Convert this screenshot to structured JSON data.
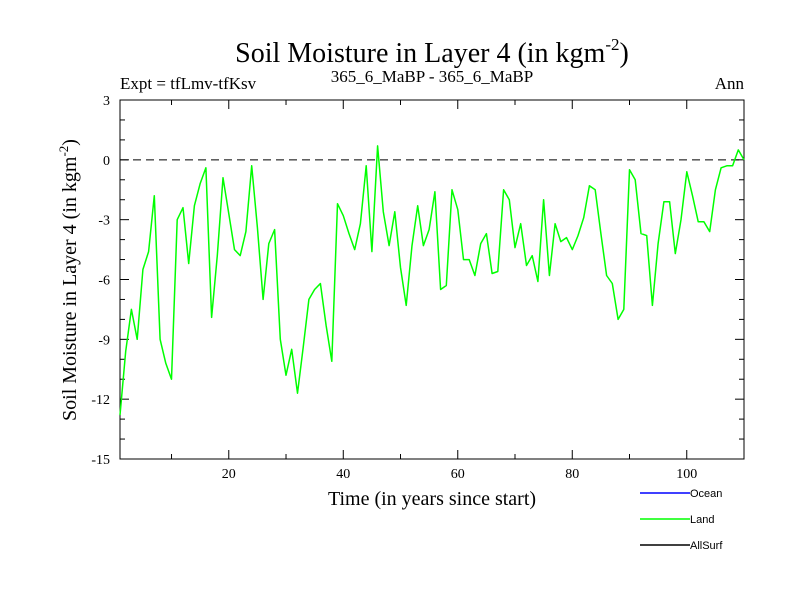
{
  "chart_data": {
    "type": "line",
    "title": "Soil Moisture in Layer 4 (in kgm",
    "title_superscript": "-2",
    "title_close": ")",
    "subtitle_left": "Expt = tfLmv-tfKsv",
    "subtitle_center": "365_6_MaBP - 365_6_MaBP",
    "subtitle_right": "Ann",
    "xlabel": "Time (in years since start)",
    "ylabel": "Soil Moisture in Layer 4 (in kgm",
    "ylabel_superscript": "-2",
    "ylabel_close": ")",
    "xlim": [
      1,
      110
    ],
    "ylim": [
      -15,
      3
    ],
    "xticks": [
      20,
      40,
      60,
      80,
      100
    ],
    "yticks": [
      -15,
      -12,
      -9,
      -6,
      -3,
      0,
      3
    ],
    "reference_line": 0,
    "legend": [
      {
        "name": "Ocean",
        "color": "#0000ff"
      },
      {
        "name": "Land",
        "color": "#00ff00"
      },
      {
        "name": "AllSurf",
        "color": "#000000"
      }
    ],
    "series": [
      {
        "name": "Land",
        "color": "#00ff00",
        "x": [
          1,
          2,
          3,
          4,
          5,
          6,
          7,
          8,
          9,
          10,
          11,
          12,
          13,
          14,
          15,
          16,
          17,
          18,
          19,
          20,
          21,
          22,
          23,
          24,
          25,
          26,
          27,
          28,
          29,
          30,
          31,
          32,
          33,
          34,
          35,
          36,
          37,
          38,
          39,
          40,
          41,
          42,
          43,
          44,
          45,
          46,
          47,
          48,
          49,
          50,
          51,
          52,
          53,
          54,
          55,
          56,
          57,
          58,
          59,
          60,
          61,
          62,
          63,
          64,
          65,
          66,
          67,
          68,
          69,
          70,
          71,
          72,
          73,
          74,
          75,
          76,
          77,
          78,
          79,
          80,
          81,
          82,
          83,
          84,
          85,
          86,
          87,
          88,
          89,
          90,
          91,
          92,
          93,
          94,
          95,
          96,
          97,
          98,
          99,
          100,
          101,
          102,
          103,
          104,
          105,
          106,
          107,
          108,
          109,
          110
        ],
        "values": [
          -12.8,
          -9.6,
          -7.5,
          -9.0,
          -5.5,
          -4.6,
          -1.8,
          -9.0,
          -10.2,
          -11.0,
          -3.0,
          -2.4,
          -5.2,
          -2.3,
          -1.2,
          -0.4,
          -7.9,
          -4.8,
          -0.9,
          -2.7,
          -4.5,
          -4.8,
          -3.6,
          -0.3,
          -3.4,
          -7.0,
          -4.2,
          -3.5,
          -9.0,
          -10.8,
          -9.5,
          -11.7,
          -9.4,
          -7.0,
          -6.5,
          -6.2,
          -8.3,
          -10.1,
          -2.2,
          -2.8,
          -3.7,
          -4.5,
          -3.2,
          -0.3,
          -4.6,
          0.7,
          -2.6,
          -4.3,
          -2.6,
          -5.4,
          -7.3,
          -4.3,
          -2.3,
          -4.3,
          -3.5,
          -1.6,
          -6.5,
          -6.3,
          -1.5,
          -2.5,
          -5.0,
          -5.0,
          -5.8,
          -4.2,
          -3.7,
          -5.7,
          -5.6,
          -1.5,
          -2.0,
          -4.4,
          -3.2,
          -5.3,
          -4.8,
          -6.1,
          -2.0,
          -5.8,
          -3.2,
          -4.1,
          -3.9,
          -4.5,
          -3.8,
          -2.9,
          -1.3,
          -1.5,
          -3.7,
          -5.8,
          -6.2,
          -8.0,
          -7.5,
          -0.5,
          -1.0,
          -3.7,
          -3.8,
          -7.3,
          -4.2,
          -2.1,
          -2.1,
          -4.7,
          -3.0,
          -0.6,
          -1.8,
          -3.1,
          -3.1,
          -3.6,
          -1.5,
          -0.4,
          -0.3,
          -0.3,
          0.5,
          0.0
        ]
      }
    ]
  }
}
